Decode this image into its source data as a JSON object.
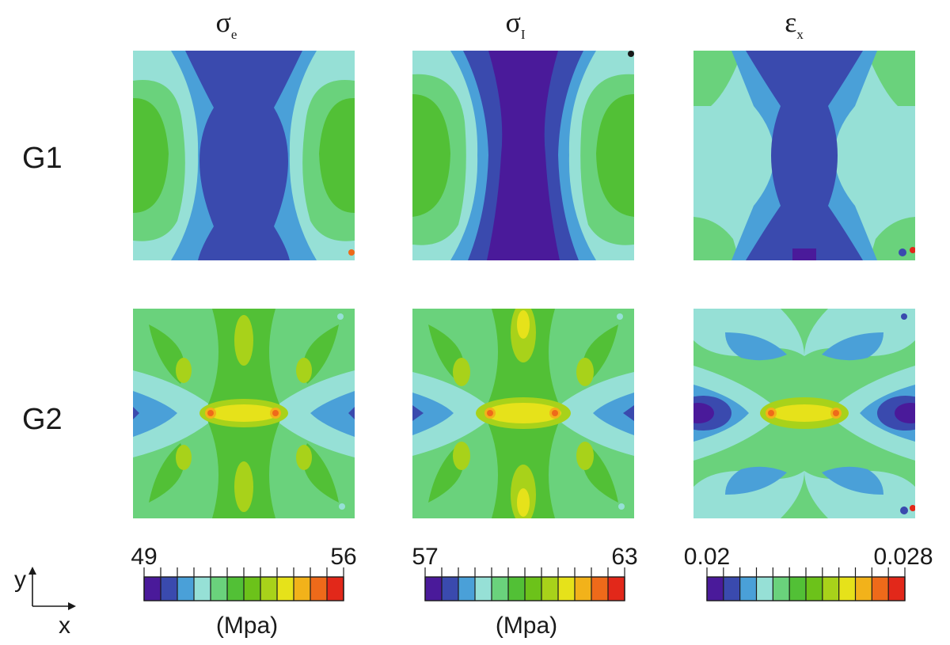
{
  "columns": [
    {
      "symbol": "σ",
      "subscript": "e"
    },
    {
      "symbol": "σ",
      "subscript": "I"
    },
    {
      "symbol": "ε",
      "subscript": "x"
    }
  ],
  "rows": [
    {
      "label": "G1"
    },
    {
      "label": "G2"
    }
  ],
  "colorbars": [
    {
      "min": "49",
      "max": "56",
      "unit": "(Mpa)"
    },
    {
      "min": "57",
      "max": "63",
      "unit": "(Mpa)"
    },
    {
      "min": "0.02",
      "max": "0.028",
      "unit": ""
    }
  ],
  "axes": {
    "y": "y",
    "x": "x"
  },
  "palette": [
    "#4a1a9a",
    "#3a4aae",
    "#4aa0d8",
    "#96e0d6",
    "#6ad27c",
    "#52c036",
    "#6cc21a",
    "#a8d21a",
    "#e6e21a",
    "#f2b21a",
    "#ee6a1a",
    "#e2281a"
  ]
}
